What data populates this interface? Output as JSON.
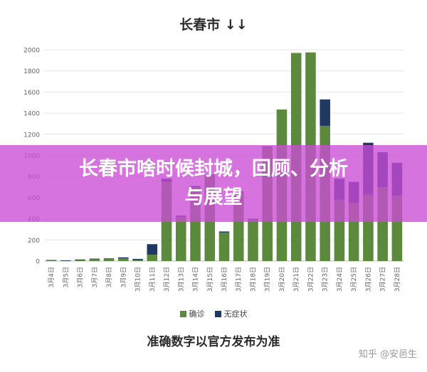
{
  "chart_data": {
    "type": "bar",
    "stacked": true,
    "title": "长春市 ↓↓",
    "categories": [
      "3月4日",
      "3月5日",
      "3月6日",
      "3月7日",
      "3月8日",
      "3月9日",
      "3月10日",
      "3月11日",
      "3月12日",
      "3月13日",
      "3月14日",
      "3月15日",
      "3月16日",
      "3月17日",
      "3月18日",
      "3月19日",
      "3月20日",
      "3月21日",
      "3月22日",
      "3月23日",
      "3月24日",
      "3月25日",
      "3月26日",
      "3月27日",
      "3月28日"
    ],
    "series": [
      {
        "name": "确诊",
        "color": "#5b8a3c",
        "values": [
          5,
          5,
          10,
          18,
          20,
          25,
          10,
          60,
          750,
          420,
          700,
          810,
          270,
          650,
          390,
          1075,
          1435,
          1970,
          1975,
          1280,
          580,
          550,
          630,
          700,
          620
        ]
      },
      {
        "name": "无症状",
        "color": "#1f3864",
        "values": [
          5,
          2,
          5,
          5,
          5,
          10,
          10,
          100,
          30,
          10,
          10,
          10,
          10,
          10,
          10,
          10,
          0,
          0,
          0,
          250,
          200,
          200,
          490,
          330,
          310
        ]
      }
    ],
    "yticks": [
      0,
      200,
      400,
      600,
      800,
      1000,
      1200,
      1400,
      1600,
      1800,
      2000
    ],
    "ylim": [
      0,
      2000
    ],
    "grid": true,
    "legend_position": "bottom-center",
    "note": "准确数字以官方发布为准"
  },
  "banner": {
    "line1": "长春市啥时候封城，回顾、分析",
    "line2": "与展望"
  },
  "watermark": "知乎 @安邑生"
}
